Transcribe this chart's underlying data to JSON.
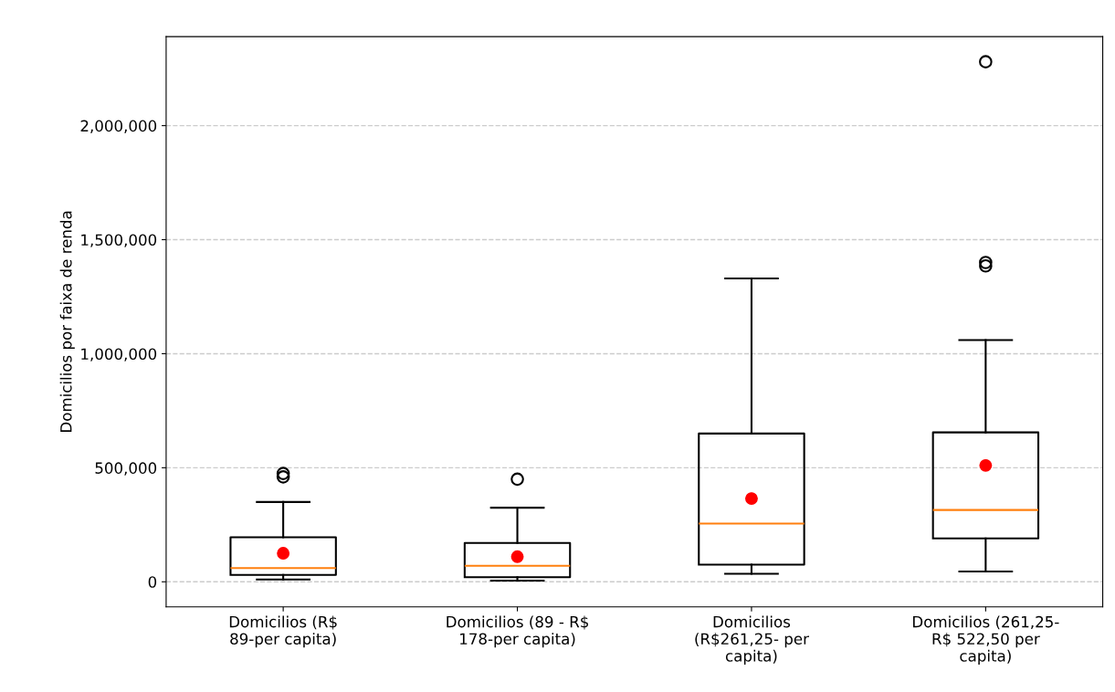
{
  "chart_data": {
    "type": "box",
    "ylabel": "Domicilios por faixa de renda",
    "categories": [
      "Domicilios (R$\n89-per capita)",
      "Domicilios (89 - R$\n178-per capita)",
      "Domicilios\n(R$261,25- per\ncapita)",
      "Domicilios (261,25-\nR$ 522,50 per\ncapita)"
    ],
    "boxes": [
      {
        "low": 10000,
        "q1": 30000,
        "median": 60000,
        "q3": 195000,
        "high": 350000,
        "mean": 125000,
        "outliers": [
          475000,
          460000
        ]
      },
      {
        "low": 5000,
        "q1": 20000,
        "median": 70000,
        "q3": 170000,
        "high": 325000,
        "mean": 110000,
        "outliers": [
          450000
        ]
      },
      {
        "low": 35000,
        "q1": 75000,
        "median": 255000,
        "q3": 650000,
        "high": 1330000,
        "mean": 365000
      },
      {
        "low": 45000,
        "q1": 190000,
        "median": 315000,
        "q3": 655000,
        "high": 1060000,
        "mean": 510000,
        "outliers": [
          2280000,
          1400000,
          1385000
        ]
      }
    ],
    "ylim": [
      -110000,
      2390000
    ],
    "yticks": [
      0,
      {
        "value": 500000,
        "label": "500,000"
      },
      {
        "value": 1000000,
        "label": "1,000,000"
      },
      {
        "value": 1500000,
        "label": "1,500,000"
      },
      {
        "value": 2000000,
        "label": "2,000,000"
      }
    ],
    "grid": "y"
  }
}
